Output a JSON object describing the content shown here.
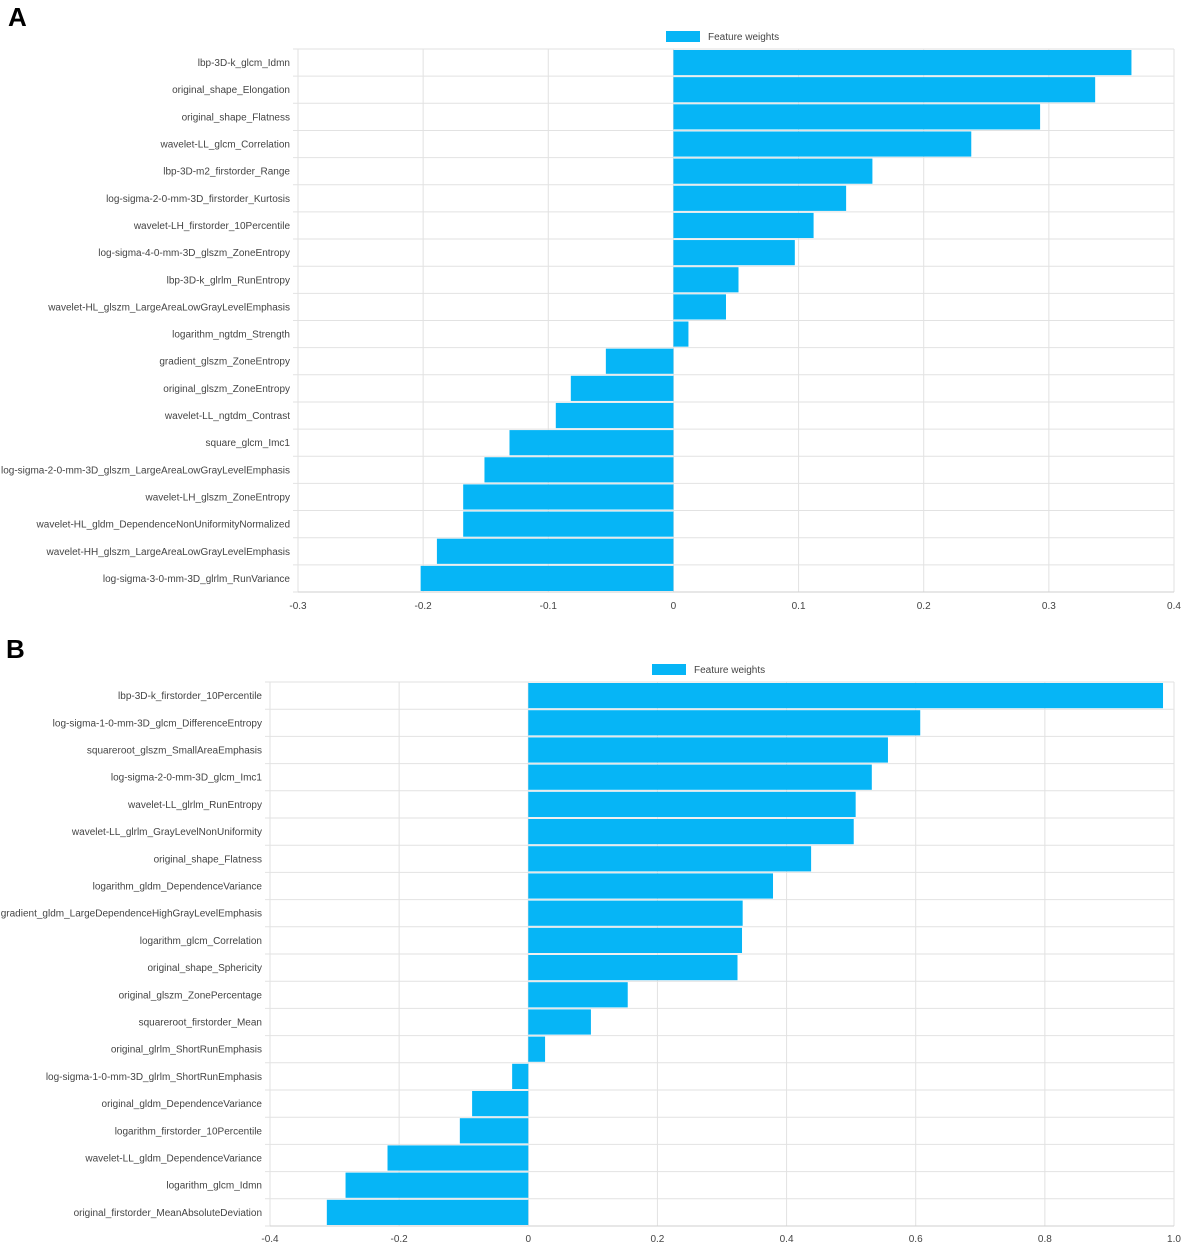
{
  "colors": {
    "bar": "#06b5f6",
    "grid": "#e2e2e2",
    "axis": "#cfcfcf",
    "text": "#444444"
  },
  "chart_data": [
    {
      "type": "bar",
      "orientation": "horizontal",
      "panel_label": "A",
      "legend": "Feature weights",
      "xlim": [
        -0.3,
        0.4
      ],
      "xticks": [
        -0.3,
        -0.2,
        -0.1,
        0,
        0.1,
        0.2,
        0.3,
        0.4
      ],
      "xtick_labels": [
        "-0.3",
        "-0.2",
        "-0.1",
        "0",
        "0.1",
        "0.2",
        "0.3",
        "0.4"
      ],
      "categories": [
        "lbp-3D-k_glcm_Idmn",
        "original_shape_Elongation",
        "original_shape_Flatness",
        "wavelet-LL_glcm_Correlation",
        "lbp-3D-m2_firstorder_Range",
        "log-sigma-2-0-mm-3D_firstorder_Kurtosis",
        "wavelet-LH_firstorder_10Percentile",
        "log-sigma-4-0-mm-3D_glszm_ZoneEntropy",
        "lbp-3D-k_glrlm_RunEntropy",
        "wavelet-HL_glszm_LargeAreaLowGrayLevelEmphasis",
        "logarithm_ngtdm_Strength",
        "gradient_glszm_ZoneEntropy",
        "original_glszm_ZoneEntropy",
        "wavelet-LL_ngtdm_Contrast",
        "square_glcm_Imc1",
        "log-sigma-2-0-mm-3D_glszm_LargeAreaLowGrayLevelEmphasis",
        "wavelet-LH_glszm_ZoneEntropy",
        "wavelet-HL_gldm_DependenceNonUniformityNormalized",
        "wavelet-HH_glszm_LargeAreaLowGrayLevelEmphasis",
        "log-sigma-3-0-mm-3D_glrlm_RunVariance"
      ],
      "values": [
        0.366,
        0.337,
        0.293,
        0.238,
        0.159,
        0.138,
        0.112,
        0.097,
        0.052,
        0.042,
        0.012,
        -0.054,
        -0.082,
        -0.094,
        -0.131,
        -0.151,
        -0.168,
        -0.168,
        -0.189,
        -0.202
      ]
    },
    {
      "type": "bar",
      "orientation": "horizontal",
      "panel_label": "B",
      "legend": "Feature weights",
      "xlim": [
        -0.4,
        1.0
      ],
      "xticks": [
        -0.4,
        -0.2,
        0,
        0.2,
        0.4,
        0.6,
        0.8,
        1.0
      ],
      "xtick_labels": [
        "-0.4",
        "-0.2",
        "0",
        "0.2",
        "0.4",
        "0.6",
        "0.8",
        "1.0"
      ],
      "categories": [
        "lbp-3D-k_firstorder_10Percentile",
        "log-sigma-1-0-mm-3D_glcm_DifferenceEntropy",
        "squareroot_glszm_SmallAreaEmphasis",
        "log-sigma-2-0-mm-3D_glcm_Imc1",
        "wavelet-LL_glrlm_RunEntropy",
        "wavelet-LL_glrlm_GrayLevelNonUniformity",
        "original_shape_Flatness",
        "logarithm_gldm_DependenceVariance",
        "gradient_gldm_LargeDependenceHighGrayLevelEmphasis",
        "logarithm_glcm_Correlation",
        "original_shape_Sphericity",
        "original_glszm_ZonePercentage",
        "squareroot_firstorder_Mean",
        "original_glrlm_ShortRunEmphasis",
        "log-sigma-1-0-mm-3D_glrlm_ShortRunEmphasis",
        "original_gldm_DependenceVariance",
        "logarithm_firstorder_10Percentile",
        "wavelet-LL_gldm_DependenceVariance",
        "logarithm_glcm_Idmn",
        "original_firstorder_MeanAbsoluteDeviation"
      ],
      "values": [
        0.983,
        0.607,
        0.557,
        0.532,
        0.507,
        0.504,
        0.438,
        0.379,
        0.332,
        0.331,
        0.324,
        0.154,
        0.097,
        0.026,
        -0.025,
        -0.087,
        -0.106,
        -0.218,
        -0.283,
        -0.312
      ]
    }
  ]
}
